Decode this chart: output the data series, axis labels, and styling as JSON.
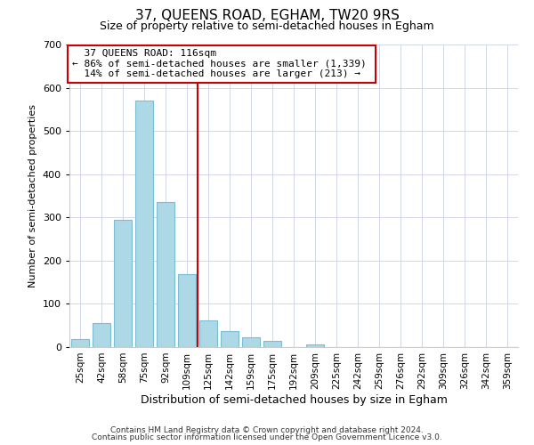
{
  "title": "37, QUEENS ROAD, EGHAM, TW20 9RS",
  "subtitle": "Size of property relative to semi-detached houses in Egham",
  "xlabel": "Distribution of semi-detached houses by size in Egham",
  "ylabel": "Number of semi-detached properties",
  "bar_labels": [
    "25sqm",
    "42sqm",
    "58sqm",
    "75sqm",
    "92sqm",
    "109sqm",
    "125sqm",
    "142sqm",
    "159sqm",
    "175sqm",
    "192sqm",
    "209sqm",
    "225sqm",
    "242sqm",
    "259sqm",
    "276sqm",
    "292sqm",
    "309sqm",
    "326sqm",
    "342sqm",
    "359sqm"
  ],
  "bar_values": [
    18,
    55,
    295,
    570,
    335,
    168,
    62,
    37,
    22,
    14,
    0,
    7,
    1,
    0,
    1,
    0,
    0,
    0,
    0,
    0,
    0
  ],
  "bar_color": "#add8e6",
  "bar_edge_color": "#7bbdd4",
  "highlight_index": 6,
  "highlight_color": "#cc0000",
  "annotation_title": "37 QUEENS ROAD: 116sqm",
  "annotation_line1": "← 86% of semi-detached houses are smaller (1,339)",
  "annotation_line2": "14% of semi-detached houses are larger (213) →",
  "annotation_box_color": "#ffffff",
  "annotation_box_edge": "#cc0000",
  "ylim": [
    0,
    700
  ],
  "yticks": [
    0,
    100,
    200,
    300,
    400,
    500,
    600,
    700
  ],
  "footer_line1": "Contains HM Land Registry data © Crown copyright and database right 2024.",
  "footer_line2": "Contains public sector information licensed under the Open Government Licence v3.0."
}
